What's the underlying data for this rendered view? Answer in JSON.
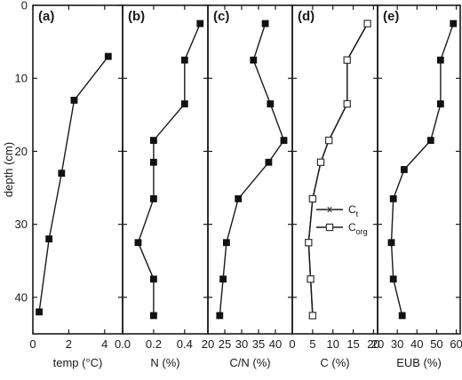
{
  "chart_data": [
    {
      "type": "line",
      "panel_label": "(a)",
      "xlabel": "temp (°C)",
      "ylabel": "depth (cm)",
      "xlim": [
        0,
        5
      ],
      "xticks": [
        "0",
        "2",
        "4"
      ],
      "xtick_values": [
        0,
        2,
        4
      ],
      "ylim": [
        45,
        0
      ],
      "yticks": [
        "0",
        "10",
        "20",
        "30",
        "40"
      ],
      "ytick_values": [
        0,
        10,
        20,
        30,
        40
      ],
      "grid": false,
      "series": [
        {
          "marker": "filled-square",
          "x": [
            4.2,
            2.3,
            1.6,
            0.9,
            0.35
          ],
          "y": [
            7,
            13,
            23,
            32,
            42
          ]
        }
      ]
    },
    {
      "type": "line",
      "panel_label": "(b)",
      "xlabel": "N (%)",
      "xlim": [
        0,
        0.55
      ],
      "xticks": [
        "0.0",
        "0.2",
        "0.4"
      ],
      "xtick_values": [
        0,
        0.2,
        0.4
      ],
      "ylim": [
        45,
        0
      ],
      "grid": false,
      "series": [
        {
          "marker": "filled-square",
          "x": [
            0.5,
            0.4,
            0.4,
            0.2,
            0.2,
            0.2,
            0.1,
            0.2,
            0.2
          ],
          "y": [
            2.5,
            7.5,
            13.5,
            18.5,
            21.5,
            26.5,
            32.5,
            37.5,
            42.5
          ]
        }
      ]
    },
    {
      "type": "line",
      "panel_label": "(c)",
      "xlabel": "C/N (%)",
      "xlim": [
        20,
        45
      ],
      "xticks": [
        "20",
        "25",
        "30",
        "35",
        "40"
      ],
      "xtick_values": [
        20,
        25,
        30,
        35,
        40
      ],
      "ylim": [
        45,
        0
      ],
      "grid": false,
      "series": [
        {
          "marker": "filled-square",
          "x": [
            37,
            33.5,
            38.5,
            42.5,
            38,
            29,
            25.5,
            24.5,
            23.5
          ],
          "y": [
            2.5,
            7.5,
            13.5,
            18.5,
            21.5,
            26.5,
            32.5,
            37.5,
            42.5
          ]
        }
      ]
    },
    {
      "type": "line",
      "panel_label": "(d)",
      "xlabel": "C (%)",
      "xlim": [
        0,
        21
      ],
      "xticks": [
        "0",
        "5",
        "10",
        "15",
        "20"
      ],
      "xtick_values": [
        0,
        5,
        10,
        15,
        20
      ],
      "ylim": [
        45,
        0
      ],
      "grid": false,
      "legend": {
        "placement": "middle-center",
        "entries": [
          {
            "label": "C",
            "subscript": "t",
            "marker": "asterisk"
          },
          {
            "label": "C",
            "subscript": "org",
            "marker": "open-square"
          }
        ]
      },
      "series": [
        {
          "name": "Ct",
          "marker": "asterisk",
          "x": [
            18.5,
            13.5,
            13.5,
            9,
            7,
            5,
            4,
            4.5,
            5
          ],
          "y": [
            2.5,
            7.5,
            13.5,
            18.5,
            21.5,
            26.5,
            32.5,
            37.5,
            42.5
          ]
        },
        {
          "name": "Corg",
          "marker": "open-square",
          "x": [
            18.5,
            13.5,
            13.5,
            9,
            7,
            5,
            4,
            4.5,
            5
          ],
          "y": [
            2.5,
            7.5,
            13.5,
            18.5,
            21.5,
            26.5,
            32.5,
            37.5,
            42.5
          ]
        }
      ]
    },
    {
      "type": "line",
      "panel_label": "(e)",
      "xlabel": "EUB (%)",
      "xlim": [
        20,
        62
      ],
      "xticks": [
        "20",
        "30",
        "40",
        "50",
        "60"
      ],
      "xtick_values": [
        20,
        30,
        40,
        50,
        60
      ],
      "ylim": [
        45,
        0
      ],
      "grid": false,
      "series": [
        {
          "marker": "filled-square",
          "x": [
            58.5,
            52,
            52,
            47,
            33.5,
            28,
            27,
            28,
            32.5
          ],
          "y": [
            2.5,
            7.5,
            13.5,
            18.5,
            22.5,
            26.5,
            32.5,
            37.5,
            42.5
          ]
        }
      ]
    }
  ]
}
